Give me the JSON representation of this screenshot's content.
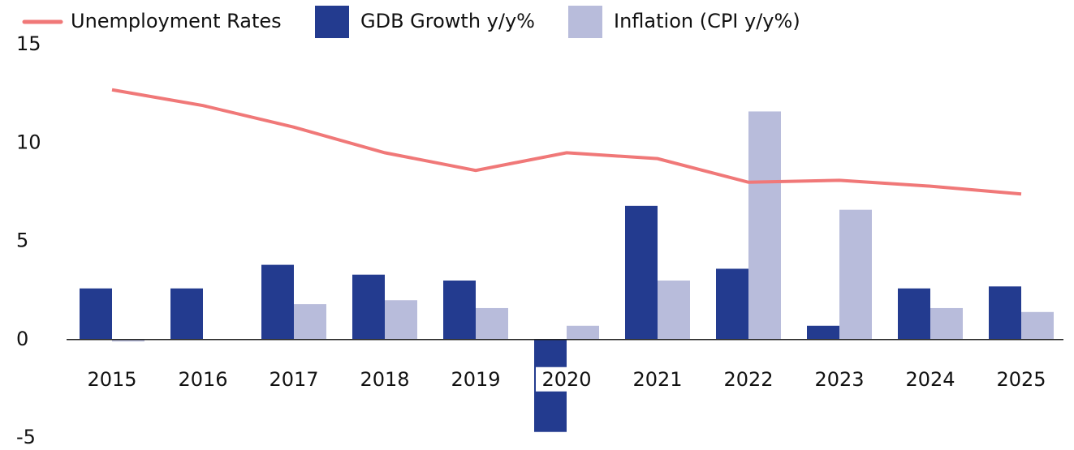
{
  "chart_data": {
    "type": "bar",
    "categories": [
      "2015",
      "2016",
      "2017",
      "2018",
      "2019",
      "2020",
      "2021",
      "2022",
      "2023",
      "2024",
      "2025"
    ],
    "series": [
      {
        "name": "Unemployment Rates",
        "type": "line",
        "color": "#f07878",
        "values": [
          12.7,
          11.9,
          10.8,
          9.5,
          8.6,
          9.5,
          9.2,
          8.0,
          8.1,
          7.8,
          7.4
        ]
      },
      {
        "name": "GDB Growth y/y%",
        "type": "bar",
        "color": "#233b8f",
        "values": [
          2.6,
          2.6,
          3.8,
          3.3,
          3.0,
          -4.7,
          6.8,
          3.6,
          0.7,
          2.6,
          2.7
        ]
      },
      {
        "name": "Inflation (CPI y/y%)",
        "type": "bar",
        "color": "#b8bcdb",
        "values": [
          -0.1,
          0,
          1.8,
          2.0,
          1.6,
          0.7,
          3.0,
          11.6,
          6.6,
          1.6,
          1.4
        ]
      }
    ],
    "ylim": [
      -5,
      15
    ],
    "yticks": [
      -5,
      0,
      5,
      10,
      15
    ],
    "grid": false,
    "legend": "top"
  }
}
